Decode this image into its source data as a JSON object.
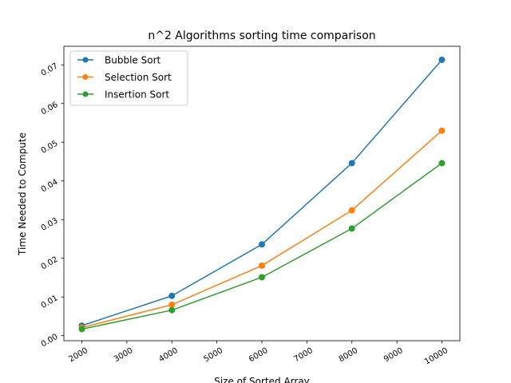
{
  "chart_data": {
    "type": "line",
    "title": "n^2 Algorithms sorting time comparison",
    "xlabel": "Size of Sorted Array",
    "ylabel": "Time Needed to Compute",
    "x": [
      2000,
      4000,
      6000,
      8000,
      10000
    ],
    "xlim": [
      1600,
      10400
    ],
    "ylim": [
      -0.0013,
      0.0748
    ],
    "x_ticks": [
      2000,
      3000,
      4000,
      5000,
      6000,
      7000,
      8000,
      9000,
      10000
    ],
    "y_ticks": [
      0.0,
      0.01,
      0.02,
      0.03,
      0.04,
      0.05,
      0.06,
      0.07
    ],
    "x_tick_labels": [
      "2000",
      "3000",
      "4000",
      "5000",
      "6000",
      "7000",
      "8000",
      "9000",
      "10000"
    ],
    "y_tick_labels": [
      "0.00",
      "0.01",
      "0.02",
      "0.03",
      "0.04",
      "0.05",
      "0.06",
      "0.07"
    ],
    "legend_position": "top-left",
    "grid": false,
    "series": [
      {
        "name": "Bubble Sort",
        "color": "#1f77b4",
        "values": [
          0.0026,
          0.0103,
          0.0236,
          0.0446,
          0.0713
        ]
      },
      {
        "name": "Selection Sort",
        "color": "#ff7f0e",
        "values": [
          0.0021,
          0.008,
          0.0181,
          0.0324,
          0.053
        ]
      },
      {
        "name": "Insertion Sort",
        "color": "#2ca02c",
        "values": [
          0.0017,
          0.0066,
          0.0151,
          0.0277,
          0.0446
        ]
      }
    ]
  }
}
